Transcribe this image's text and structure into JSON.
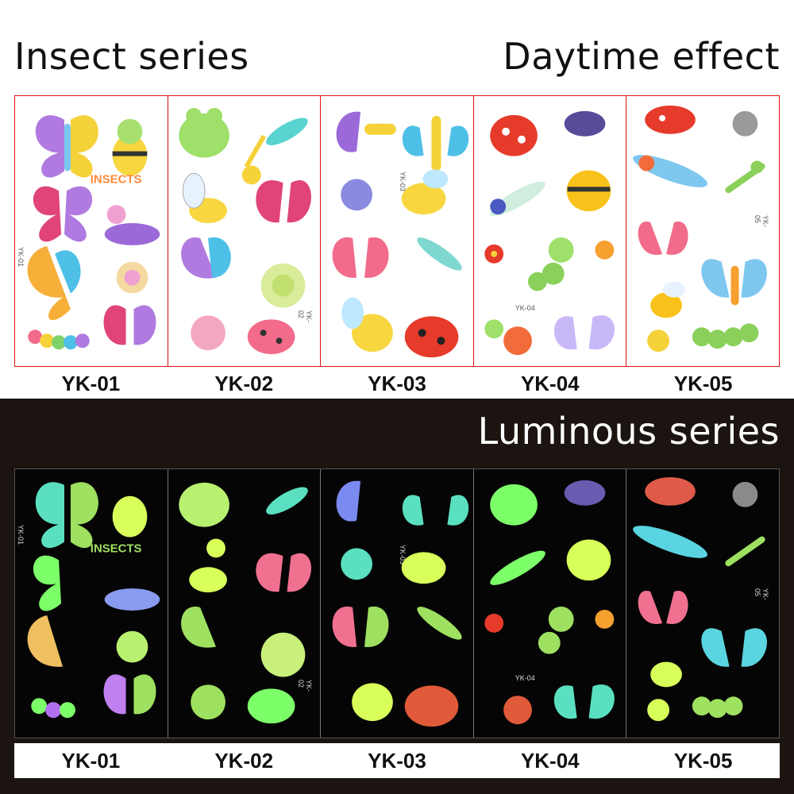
{
  "header": {
    "left_title": "Insect series",
    "right_title": "Daytime effect"
  },
  "luminous": {
    "title": "Luminous series"
  },
  "sheets": [
    {
      "code": "YK-01",
      "side_label": "YK-01",
      "badge": "INSECTS"
    },
    {
      "code": "YK-02",
      "side_label": "YK-02"
    },
    {
      "code": "YK-03",
      "side_label": "YK-03"
    },
    {
      "code": "YK-04",
      "side_label": "YK-04"
    },
    {
      "code": "YK-05",
      "side_label": "YK-05"
    }
  ],
  "colors": {
    "frame_red": "#dd1111",
    "night_bg": "#1c1411",
    "glow_green": "#7dff6a",
    "glow_yellow": "#d8ff5a"
  }
}
